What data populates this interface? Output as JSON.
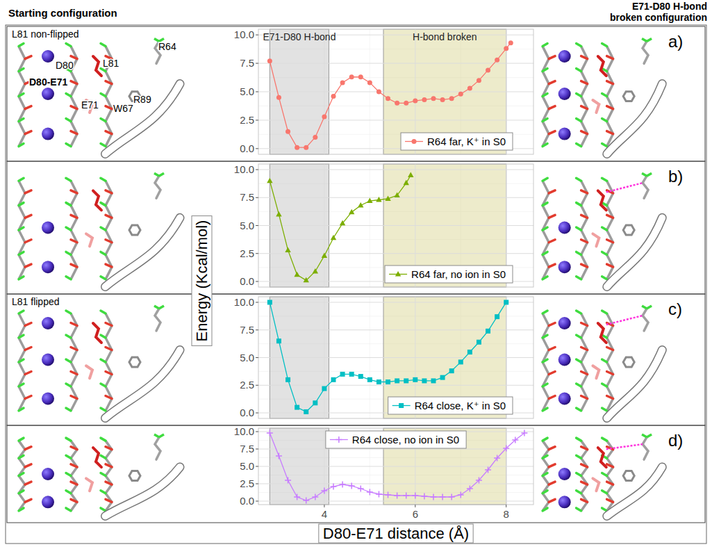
{
  "headers": {
    "left": "Starting configuration",
    "right": "E71-D80 H-bond broken configuration"
  },
  "axis_labels": {
    "x": "D80-E71 distance (Å)",
    "y": "Energy (Kcal/mol)"
  },
  "regions": [
    {
      "label": "E71-D80 H-bond",
      "from": 2.8,
      "to": 4.1,
      "color": "#bebebe"
    },
    {
      "label": "H-bond broken",
      "from": 5.3,
      "to": 8.0,
      "color": "#d6d28c"
    }
  ],
  "structures": [
    {
      "panel_label": "L81 non-flipped",
      "labels": [
        "D80",
        "L81",
        "R64",
        "D80-E71",
        "E71",
        "W67",
        "R89"
      ],
      "ions_left": 3,
      "ions_right": 3
    },
    {
      "ions_left": 2,
      "ions_right": 2
    },
    {
      "panel_label": "L81 flipped",
      "ions_left": 3,
      "ions_right": 3
    },
    {
      "ions_left": 2,
      "ions_right": 2
    }
  ],
  "chart_data": [
    {
      "type": "line",
      "panel": "a)",
      "xlim": [
        2.55,
        8.6
      ],
      "xticks": [
        4,
        6,
        8
      ],
      "ylim": [
        -0.5,
        10.5
      ],
      "yticks": [
        {
          "value": 0,
          "label": "0.0"
        },
        {
          "value": 2.5,
          "label": "2.5"
        },
        {
          "value": 5,
          "label": "5.0"
        },
        {
          "value": 7.5,
          "label": "7.5"
        },
        {
          "value": 10,
          "label": "10.0"
        }
      ],
      "grid": true,
      "legend": "lower right",
      "tick_labels": "y",
      "series": [
        {
          "name": "R64 far, K⁺ in S0",
          "color": "#F8766D",
          "marker": "circle",
          "line_style": "solid",
          "x": [
            2.8,
            3.0,
            3.2,
            3.4,
            3.6,
            3.8,
            4.0,
            4.2,
            4.4,
            4.6,
            4.8,
            5.0,
            5.2,
            5.4,
            5.6,
            5.8,
            6.0,
            6.2,
            6.4,
            6.6,
            6.8,
            7.0,
            7.2,
            7.4,
            7.6,
            7.8,
            8.0,
            8.1
          ],
          "values": [
            7.7,
            4.5,
            1.5,
            0.1,
            0.1,
            1.0,
            2.8,
            4.6,
            5.8,
            6.3,
            6.3,
            5.8,
            5.0,
            4.4,
            4.0,
            4.0,
            4.2,
            4.3,
            4.4,
            4.3,
            4.4,
            4.8,
            5.3,
            6.0,
            6.9,
            7.8,
            8.8,
            9.3
          ]
        }
      ]
    },
    {
      "type": "line",
      "panel": "b)",
      "xlim": [
        2.55,
        8.6
      ],
      "xticks": [
        4,
        6,
        8
      ],
      "ylim": [
        -0.5,
        10.5
      ],
      "yticks": [
        {
          "value": 0,
          "label": "0.0"
        },
        {
          "value": 2.5,
          "label": "2.5"
        },
        {
          "value": 5,
          "label": "5.0"
        },
        {
          "value": 7.5,
          "label": "7.5"
        },
        {
          "value": 10,
          "label": "10.0"
        }
      ],
      "grid": true,
      "legend": "lower right",
      "tick_labels": "y",
      "series": [
        {
          "name": "R64 far, no ion in S0",
          "color": "#7CAE00",
          "marker": "triangle",
          "line_style": "solid",
          "x": [
            2.8,
            3.0,
            3.2,
            3.4,
            3.6,
            3.8,
            4.0,
            4.2,
            4.4,
            4.6,
            4.8,
            5.0,
            5.2,
            5.4,
            5.6,
            5.8,
            5.9
          ],
          "values": [
            9.0,
            6.0,
            2.8,
            0.6,
            0.1,
            0.9,
            2.3,
            3.9,
            5.2,
            6.2,
            6.8,
            7.2,
            7.3,
            7.4,
            7.7,
            8.8,
            9.5
          ]
        }
      ]
    },
    {
      "type": "line",
      "panel": "c)",
      "xlim": [
        2.55,
        8.6
      ],
      "xticks": [
        4,
        6,
        8
      ],
      "ylim": [
        -0.5,
        10.5
      ],
      "yticks": [
        {
          "value": 0,
          "label": "0.0"
        },
        {
          "value": 2.5,
          "label": "2.5"
        },
        {
          "value": 5,
          "label": "5.0"
        },
        {
          "value": 7.5,
          "label": "7.5"
        },
        {
          "value": 10,
          "label": "10.0"
        }
      ],
      "grid": true,
      "legend": "lower right",
      "tick_labels": "y",
      "series": [
        {
          "name": "R64 close, K⁺ in S0",
          "color": "#00BFC4",
          "marker": "square",
          "line_style": "solid",
          "x": [
            2.8,
            3.0,
            3.2,
            3.4,
            3.6,
            3.8,
            4.0,
            4.2,
            4.4,
            4.6,
            4.8,
            5.0,
            5.2,
            5.4,
            5.6,
            5.8,
            6.0,
            6.2,
            6.4,
            6.6,
            6.8,
            7.0,
            7.2,
            7.4,
            7.6,
            7.8,
            8.0
          ],
          "values": [
            10.0,
            6.5,
            3.0,
            0.5,
            0.1,
            0.9,
            2.2,
            3.0,
            3.5,
            3.5,
            3.3,
            3.0,
            2.8,
            2.8,
            2.9,
            2.9,
            3.0,
            2.9,
            2.9,
            3.2,
            3.8,
            4.6,
            5.5,
            6.4,
            7.4,
            8.7,
            10.0
          ]
        }
      ]
    },
    {
      "type": "line",
      "panel": "d)",
      "xlim": [
        2.55,
        8.6
      ],
      "xticks": [
        4,
        6,
        8
      ],
      "ylim": [
        -0.5,
        10.5
      ],
      "yticks": [
        {
          "value": 0,
          "label": "0.0"
        },
        {
          "value": 2.5,
          "label": "2.5"
        },
        {
          "value": 5,
          "label": "5.0"
        },
        {
          "value": 7.5,
          "label": "7.5"
        },
        {
          "value": 10,
          "label": "10.0"
        }
      ],
      "grid": true,
      "legend": "upper center",
      "series": [
        {
          "name": "R64 close, no ion in S0",
          "color": "#C77CFF",
          "marker": "plus",
          "line_style": "solid",
          "x": [
            2.8,
            3.0,
            3.2,
            3.4,
            3.6,
            3.8,
            4.0,
            4.2,
            4.4,
            4.6,
            4.8,
            5.0,
            5.2,
            5.4,
            5.6,
            5.8,
            6.0,
            6.2,
            6.4,
            6.6,
            6.8,
            7.0,
            7.2,
            7.4,
            7.6,
            7.8,
            8.0,
            8.2,
            8.4
          ],
          "values": [
            9.8,
            6.5,
            3.0,
            0.6,
            0.1,
            0.6,
            1.5,
            2.1,
            2.4,
            2.2,
            1.8,
            1.3,
            1.0,
            0.9,
            0.8,
            0.8,
            0.8,
            0.7,
            0.6,
            0.6,
            0.6,
            0.9,
            1.8,
            3.0,
            4.5,
            6.2,
            7.6,
            8.8,
            9.8
          ]
        }
      ]
    }
  ]
}
